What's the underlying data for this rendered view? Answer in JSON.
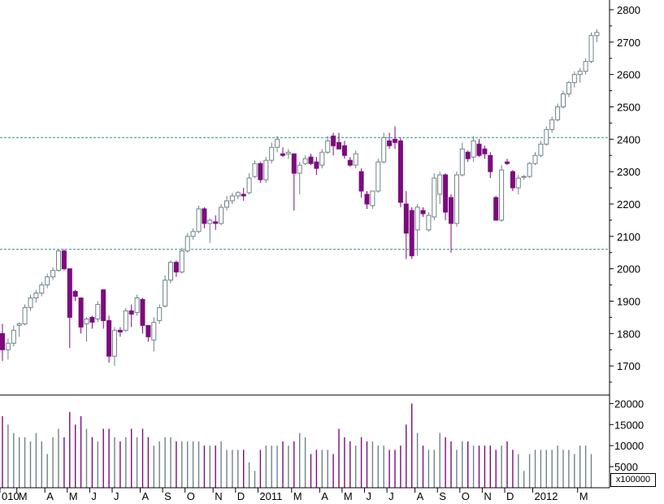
{
  "chart_data": {
    "type": "candlestick",
    "period": "weekly",
    "colors": {
      "up_outline": "#6e8388",
      "down_fill": "#7c0b7e",
      "neutral_fill": "#6e8388",
      "volume_up": "#6e8388",
      "volume_down": "#7c0b7e",
      "reference_line": "#2e8b86",
      "axis": "#000000"
    },
    "price_axis": {
      "ticks": [
        "1700",
        "1800",
        "1900",
        "2000",
        "2100",
        "2200",
        "2300",
        "2400",
        "2500",
        "2600",
        "2700",
        "2800"
      ],
      "ylim": [
        1610,
        2830
      ]
    },
    "volume_axis": {
      "ticks": [
        "5000",
        "10000",
        "15000",
        "20000"
      ],
      "unit": "x100000",
      "ylim": [
        0,
        22000
      ]
    },
    "x_labels": [
      {
        "label": "010",
        "week": 0
      },
      {
        "label": "M",
        "week": 3
      },
      {
        "label": "A",
        "week": 8
      },
      {
        "label": "M",
        "week": 12
      },
      {
        "label": "J",
        "week": 16
      },
      {
        "label": "J",
        "week": 20
      },
      {
        "label": "A",
        "week": 25
      },
      {
        "label": "S",
        "week": 29
      },
      {
        "label": "O",
        "week": 33
      },
      {
        "label": "N",
        "week": 38
      },
      {
        "label": "D",
        "week": 42
      },
      {
        "label": "2011",
        "week": 46
      },
      {
        "label": "M",
        "week": 52
      },
      {
        "label": "A",
        "week": 57
      },
      {
        "label": "M",
        "week": 61
      },
      {
        "label": "J",
        "week": 65
      },
      {
        "label": "J",
        "week": 69
      },
      {
        "label": "A",
        "week": 74
      },
      {
        "label": "S",
        "week": 78
      },
      {
        "label": "O",
        "week": 82
      },
      {
        "label": "N",
        "week": 86
      },
      {
        "label": "D",
        "week": 90
      },
      {
        "label": "2012",
        "week": 95
      },
      {
        "label": "M",
        "week": 103
      }
    ],
    "reference_levels": [
      2060,
      2405
    ],
    "candles": [
      [
        1800,
        1830,
        1715,
        1750
      ],
      [
        1750,
        1785,
        1720,
        1770
      ],
      [
        1770,
        1825,
        1760,
        1810
      ],
      [
        1825,
        1835,
        1790,
        1830
      ],
      [
        1830,
        1890,
        1825,
        1880
      ],
      [
        1880,
        1920,
        1870,
        1910
      ],
      [
        1910,
        1935,
        1895,
        1925
      ],
      [
        1925,
        1960,
        1915,
        1950
      ],
      [
        1950,
        1985,
        1940,
        1975
      ],
      [
        1975,
        2005,
        1965,
        1995
      ],
      [
        1995,
        2060,
        1990,
        2055
      ],
      [
        2055,
        2060,
        1995,
        2000
      ],
      [
        2000,
        2000,
        1755,
        1850
      ],
      [
        1930,
        1935,
        1900,
        1915
      ],
      [
        1910,
        1910,
        1800,
        1820
      ],
      [
        1830,
        1850,
        1775,
        1845
      ],
      [
        1850,
        1855,
        1815,
        1835
      ],
      [
        1845,
        1900,
        1835,
        1890
      ],
      [
        1935,
        1935,
        1815,
        1840
      ],
      [
        1840,
        1855,
        1710,
        1730
      ],
      [
        1730,
        1820,
        1700,
        1810
      ],
      [
        1810,
        1820,
        1790,
        1805
      ],
      [
        1810,
        1880,
        1805,
        1870
      ],
      [
        1870,
        1890,
        1820,
        1860
      ],
      [
        1865,
        1920,
        1855,
        1910
      ],
      [
        1905,
        1910,
        1800,
        1825
      ],
      [
        1825,
        1825,
        1775,
        1790
      ],
      [
        1780,
        1850,
        1745,
        1835
      ],
      [
        1840,
        1890,
        1830,
        1880
      ],
      [
        1885,
        1980,
        1880,
        1965
      ],
      [
        1965,
        2025,
        1955,
        2020
      ],
      [
        2020,
        2025,
        1975,
        1990
      ],
      [
        1990,
        2065,
        1985,
        2055
      ],
      [
        2055,
        2110,
        2050,
        2100
      ],
      [
        2100,
        2125,
        2090,
        2115
      ],
      [
        2115,
        2195,
        2110,
        2185
      ],
      [
        2185,
        2190,
        2125,
        2140
      ],
      [
        2140,
        2155,
        2080,
        2150
      ],
      [
        2145,
        2165,
        2120,
        2140
      ],
      [
        2140,
        2200,
        2135,
        2190
      ],
      [
        2190,
        2225,
        2180,
        2210
      ],
      [
        2210,
        2235,
        2200,
        2225
      ],
      [
        2225,
        2240,
        2215,
        2235
      ],
      [
        2230,
        2250,
        2210,
        2225
      ],
      [
        2235,
        2295,
        2230,
        2280
      ],
      [
        2285,
        2335,
        2280,
        2325
      ],
      [
        2325,
        2330,
        2265,
        2275
      ],
      [
        2275,
        2345,
        2265,
        2335
      ],
      [
        2335,
        2390,
        2325,
        2375
      ],
      [
        2375,
        2410,
        2360,
        2400
      ],
      [
        2355,
        2375,
        2345,
        2350
      ],
      [
        2355,
        2370,
        2340,
        2360
      ],
      [
        2355,
        2355,
        2180,
        2295
      ],
      [
        2295,
        2330,
        2230,
        2320
      ],
      [
        2325,
        2350,
        2320,
        2340
      ],
      [
        2345,
        2355,
        2320,
        2325
      ],
      [
        2330,
        2345,
        2290,
        2310
      ],
      [
        2320,
        2370,
        2310,
        2360
      ],
      [
        2360,
        2410,
        2355,
        2395
      ],
      [
        2410,
        2420,
        2350,
        2380
      ],
      [
        2390,
        2420,
        2370,
        2370
      ],
      [
        2380,
        2395,
        2340,
        2350
      ],
      [
        2335,
        2345,
        2315,
        2320
      ],
      [
        2320,
        2365,
        2310,
        2355
      ],
      [
        2300,
        2310,
        2220,
        2240
      ],
      [
        2230,
        2240,
        2185,
        2200
      ],
      [
        2195,
        2240,
        2185,
        2240
      ],
      [
        2240,
        2340,
        2235,
        2330
      ],
      [
        2330,
        2420,
        2325,
        2405
      ],
      [
        2395,
        2420,
        2370,
        2380
      ],
      [
        2400,
        2440,
        2370,
        2390
      ],
      [
        2395,
        2405,
        2190,
        2205
      ],
      [
        2200,
        2240,
        2030,
        2110
      ],
      [
        2180,
        2190,
        2030,
        2040
      ],
      [
        2120,
        2200,
        2040,
        2190
      ],
      [
        2180,
        2190,
        2160,
        2170
      ],
      [
        2120,
        2175,
        2115,
        2165
      ],
      [
        2160,
        2295,
        2150,
        2280
      ],
      [
        2230,
        2300,
        2200,
        2290
      ],
      [
        2290,
        2295,
        2150,
        2175
      ],
      [
        2220,
        2230,
        2050,
        2140
      ],
      [
        2140,
        2300,
        2130,
        2290
      ],
      [
        2290,
        2390,
        2285,
        2370
      ],
      [
        2360,
        2365,
        2330,
        2340
      ],
      [
        2345,
        2410,
        2330,
        2395
      ],
      [
        2385,
        2400,
        2345,
        2350
      ],
      [
        2370,
        2380,
        2340,
        2355
      ],
      [
        2350,
        2360,
        2280,
        2300
      ],
      [
        2220,
        2225,
        2150,
        2150
      ],
      [
        2150,
        2320,
        2145,
        2305
      ],
      [
        2330,
        2340,
        2320,
        2325
      ],
      [
        2300,
        2305,
        2240,
        2250
      ],
      [
        2250,
        2290,
        2230,
        2280
      ],
      [
        2285,
        2290,
        2275,
        2285
      ],
      [
        2285,
        2330,
        2280,
        2325
      ],
      [
        2325,
        2360,
        2320,
        2350
      ],
      [
        2350,
        2395,
        2345,
        2385
      ],
      [
        2385,
        2440,
        2380,
        2430
      ],
      [
        2430,
        2470,
        2420,
        2460
      ],
      [
        2460,
        2510,
        2455,
        2500
      ],
      [
        2500,
        2550,
        2495,
        2540
      ],
      [
        2540,
        2580,
        2530,
        2575
      ],
      [
        2575,
        2610,
        2560,
        2600
      ],
      [
        2600,
        2620,
        2575,
        2610
      ],
      [
        2610,
        2650,
        2600,
        2640
      ],
      [
        2640,
        2730,
        2635,
        2720
      ],
      [
        2720,
        2740,
        2700,
        2730
      ]
    ],
    "volume": [
      17000,
      15000,
      13000,
      12000,
      12000,
      11000,
      13000,
      11000,
      8000,
      12000,
      14000,
      12000,
      18000,
      15000,
      17000,
      14000,
      12000,
      11000,
      14000,
      14000,
      12000,
      11000,
      12000,
      14000,
      12000,
      14000,
      12000,
      10000,
      11000,
      12000,
      12000,
      11000,
      11000,
      11000,
      11000,
      11000,
      10000,
      10000,
      10000,
      11000,
      9000,
      9000,
      9000,
      9000,
      6000,
      4000,
      9000,
      10000,
      10000,
      10000,
      11000,
      10000,
      11000,
      13000,
      12000,
      8000,
      9000,
      9000,
      9000,
      8000,
      14000,
      12000,
      11000,
      10000,
      12000,
      11000,
      11000,
      10000,
      10000,
      9000,
      9000,
      10000,
      15000,
      20000,
      13000,
      10000,
      9000,
      9000,
      13000,
      12000,
      11000,
      9000,
      11000,
      11000,
      10000,
      10000,
      10000,
      10000,
      9000,
      10000,
      11000,
      9000,
      8000,
      4000,
      8000,
      9000,
      9000,
      9000,
      9000,
      10000,
      9000,
      9000,
      8000,
      10000,
      10000,
      8000
    ]
  }
}
